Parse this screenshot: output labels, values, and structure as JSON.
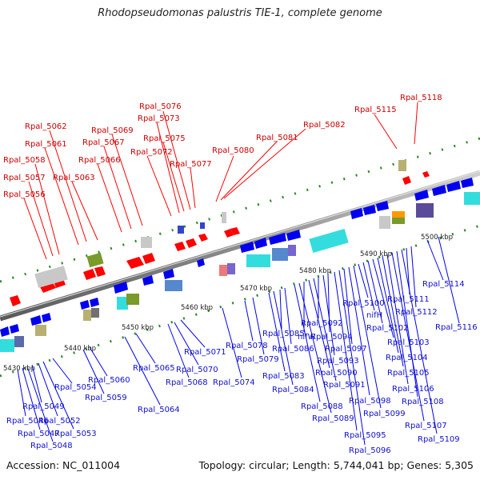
{
  "title": "Rhodopseudomonas palustris TIE-1, complete genome",
  "footer": {
    "accession": "Accession: NC_011004",
    "summary": "Topology: circular; Length: 5,744,041 bp; Genes: 5,305"
  },
  "colors": {
    "forward": "#ff0000",
    "reverse": "#0000ee",
    "backbone": "#8c8c8c",
    "tick": "#2a8a2a",
    "label_forward": "#cc0000",
    "label_reverse": "#1010cc"
  },
  "kbp_ticks": [
    "5430 kbp",
    "5440 kbp",
    "5450 kbp",
    "5460 kbp",
    "5470 kbp",
    "5480 kbp",
    "5490 kbp",
    "5500 kbp"
  ],
  "forward_labels": [
    "Rpal_5056",
    "Rpal_5057",
    "Rpal_5058",
    "Rpal_5061",
    "Rpal_5062",
    "Rpal_5063",
    "Rpal_5066",
    "Rpal_5067",
    "Rpal_5069",
    "Rpal_5072",
    "Rpal_5073",
    "Rpal_5075",
    "Rpal_5076",
    "Rpal_5077",
    "Rpal_5080",
    "Rpal_5081",
    "Rpal_5082",
    "Rpal_5115",
    "Rpal_5118"
  ],
  "reverse_labels": [
    "Rpal_5046",
    "Rpal_5047",
    "Rpal_5048",
    "Rpal_5049",
    "Rpal_5052",
    "Rpal_5053",
    "Rpal_5054",
    "Rpal_5059",
    "Rpal_5060",
    "Rpal_5064",
    "Rpal_5065",
    "Rpal_5068",
    "Rpal_5070",
    "Rpal_5071",
    "Rpal_5074",
    "Rpal_5078",
    "Rpal_5079",
    "Rpal_5083",
    "Rpal_5084",
    "Rpal_5085",
    "Rpal_5086",
    "Rpal_5088",
    "Rpal_5089",
    "nifW",
    "Rpal_5090",
    "Rpal_5091",
    "Rpal_5092",
    "Rpal_5093",
    "Rpal_5094",
    "Rpal_5095",
    "Rpal_5096",
    "Rpal_5097",
    "Rpal_5098",
    "Rpal_5099",
    "Rpal_5100",
    "nifH",
    "Rpal_5102",
    "Rpal_5103",
    "Rpal_5104",
    "Rpal_5105",
    "Rpal_5106",
    "Rpal_5107",
    "Rpal_5108",
    "Rpal_5109",
    "Rpal_5111",
    "Rpal_5112",
    "Rpal_5114",
    "Rpal_5116"
  ]
}
